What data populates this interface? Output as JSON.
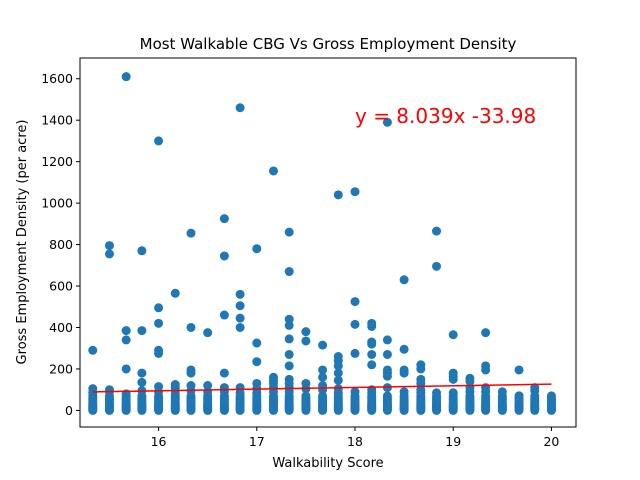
{
  "chart_data": {
    "type": "scatter",
    "title": "Most Walkable CBG Vs Gross Employment Density",
    "xlabel": "Walkability Score",
    "ylabel": "Gross Employment Density (per acre)",
    "xlim": [
      15.2,
      20.25
    ],
    "ylim": [
      -80,
      1700
    ],
    "xticks": [
      16,
      17,
      18,
      19,
      20
    ],
    "yticks": [
      0,
      200,
      400,
      600,
      800,
      1000,
      1200,
      1400,
      1600
    ],
    "grid": false,
    "point_color": "#1f77b4",
    "x_columns": [
      15.33,
      15.5,
      15.67,
      15.83,
      16.0,
      16.17,
      16.33,
      16.5,
      16.67,
      16.83,
      17.0,
      17.17,
      17.33,
      17.5,
      17.67,
      17.83,
      18.0,
      18.17,
      18.33,
      18.5,
      18.67,
      18.83,
      19.0,
      19.17,
      19.33,
      19.5,
      19.67,
      19.83,
      20.0
    ],
    "base_y": [
      0,
      5,
      10,
      15,
      20,
      25,
      30,
      40,
      50,
      60,
      70
    ],
    "points": [
      [
        15.33,
        290
      ],
      [
        15.33,
        105
      ],
      [
        15.33,
        85
      ],
      [
        15.5,
        795
      ],
      [
        15.5,
        755
      ],
      [
        15.5,
        100
      ],
      [
        15.5,
        90
      ],
      [
        15.67,
        1610
      ],
      [
        15.67,
        385
      ],
      [
        15.67,
        340
      ],
      [
        15.67,
        200
      ],
      [
        15.67,
        80
      ],
      [
        15.83,
        770
      ],
      [
        15.83,
        385
      ],
      [
        15.83,
        180
      ],
      [
        15.83,
        135
      ],
      [
        15.83,
        95
      ],
      [
        16.0,
        1300
      ],
      [
        16.0,
        495
      ],
      [
        16.0,
        420
      ],
      [
        16.0,
        290
      ],
      [
        16.0,
        275
      ],
      [
        16.0,
        115
      ],
      [
        16.0,
        90
      ],
      [
        16.17,
        565
      ],
      [
        16.17,
        125
      ],
      [
        16.17,
        110
      ],
      [
        16.17,
        95
      ],
      [
        16.17,
        80
      ],
      [
        16.33,
        855
      ],
      [
        16.33,
        400
      ],
      [
        16.33,
        195
      ],
      [
        16.33,
        180
      ],
      [
        16.33,
        120
      ],
      [
        16.33,
        95
      ],
      [
        16.5,
        375
      ],
      [
        16.5,
        120
      ],
      [
        16.5,
        90
      ],
      [
        16.67,
        925
      ],
      [
        16.67,
        745
      ],
      [
        16.67,
        460
      ],
      [
        16.67,
        180
      ],
      [
        16.67,
        110
      ],
      [
        16.67,
        90
      ],
      [
        16.83,
        1460
      ],
      [
        16.83,
        560
      ],
      [
        16.83,
        505
      ],
      [
        16.83,
        445
      ],
      [
        16.83,
        400
      ],
      [
        16.83,
        110
      ],
      [
        16.83,
        85
      ],
      [
        17.0,
        780
      ],
      [
        17.0,
        325
      ],
      [
        17.0,
        235
      ],
      [
        17.0,
        130
      ],
      [
        17.0,
        105
      ],
      [
        17.0,
        85
      ],
      [
        17.17,
        1155
      ],
      [
        17.17,
        160
      ],
      [
        17.17,
        145
      ],
      [
        17.17,
        130
      ],
      [
        17.17,
        110
      ],
      [
        17.17,
        90
      ],
      [
        17.33,
        860
      ],
      [
        17.33,
        670
      ],
      [
        17.33,
        440
      ],
      [
        17.33,
        410
      ],
      [
        17.33,
        345
      ],
      [
        17.33,
        270
      ],
      [
        17.33,
        215
      ],
      [
        17.33,
        150
      ],
      [
        17.33,
        130
      ],
      [
        17.33,
        110
      ],
      [
        17.33,
        90
      ],
      [
        17.5,
        380
      ],
      [
        17.5,
        335
      ],
      [
        17.5,
        130
      ],
      [
        17.5,
        105
      ],
      [
        17.67,
        315
      ],
      [
        17.67,
        195
      ],
      [
        17.67,
        160
      ],
      [
        17.67,
        120
      ],
      [
        17.67,
        100
      ],
      [
        17.83,
        1040
      ],
      [
        17.83,
        260
      ],
      [
        17.83,
        240
      ],
      [
        17.83,
        215
      ],
      [
        17.83,
        180
      ],
      [
        17.83,
        145
      ],
      [
        17.83,
        105
      ],
      [
        17.83,
        85
      ],
      [
        18.0,
        1055
      ],
      [
        18.0,
        525
      ],
      [
        18.0,
        415
      ],
      [
        18.0,
        275
      ],
      [
        18.0,
        90
      ],
      [
        18.17,
        420
      ],
      [
        18.17,
        405
      ],
      [
        18.17,
        330
      ],
      [
        18.17,
        320
      ],
      [
        18.17,
        270
      ],
      [
        18.17,
        220
      ],
      [
        18.17,
        100
      ],
      [
        18.17,
        85
      ],
      [
        18.33,
        1390
      ],
      [
        18.33,
        340
      ],
      [
        18.33,
        270
      ],
      [
        18.33,
        195
      ],
      [
        18.33,
        180
      ],
      [
        18.33,
        165
      ],
      [
        18.33,
        110
      ],
      [
        18.5,
        630
      ],
      [
        18.5,
        295
      ],
      [
        18.5,
        195
      ],
      [
        18.5,
        180
      ],
      [
        18.5,
        90
      ],
      [
        18.67,
        220
      ],
      [
        18.67,
        200
      ],
      [
        18.67,
        150
      ],
      [
        18.67,
        130
      ],
      [
        18.67,
        100
      ],
      [
        18.67,
        85
      ],
      [
        18.83,
        865
      ],
      [
        18.83,
        695
      ],
      [
        18.83,
        85
      ],
      [
        19.0,
        365
      ],
      [
        19.0,
        180
      ],
      [
        19.0,
        165
      ],
      [
        19.0,
        150
      ],
      [
        19.0,
        85
      ],
      [
        19.17,
        155
      ],
      [
        19.17,
        140
      ],
      [
        19.17,
        110
      ],
      [
        19.17,
        90
      ],
      [
        19.33,
        375
      ],
      [
        19.33,
        215
      ],
      [
        19.33,
        195
      ],
      [
        19.33,
        110
      ],
      [
        19.33,
        90
      ],
      [
        19.5,
        90
      ],
      [
        19.67,
        195
      ],
      [
        19.67,
        70
      ],
      [
        19.83,
        110
      ],
      [
        19.83,
        95
      ],
      [
        20.0,
        45
      ]
    ],
    "trendline": {
      "x": [
        15.33,
        20.0
      ],
      "y": [
        89.3,
        126.8
      ],
      "color": "#ff0000",
      "equation": "y = 8.039x -33.98",
      "equation_x": 18.0,
      "equation_y": 1420
    }
  }
}
